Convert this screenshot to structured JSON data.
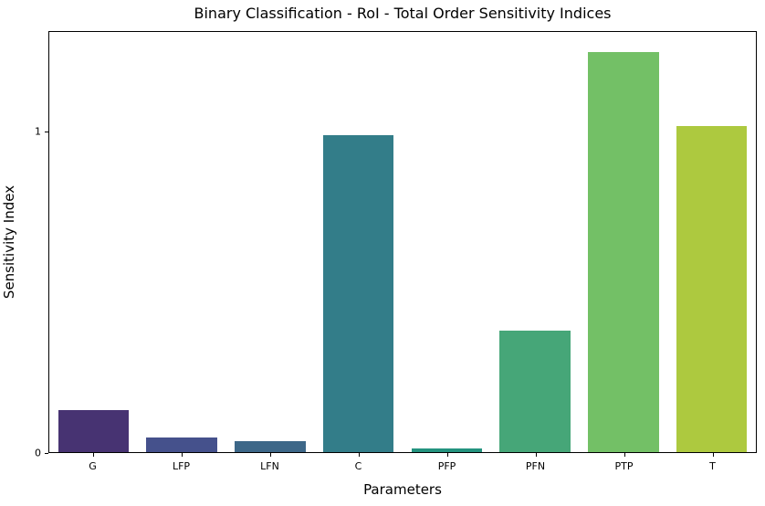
{
  "figure": {
    "background": "#ffffff",
    "spine_color": "#000000",
    "text_color": "#000000"
  },
  "chart_data": {
    "type": "bar",
    "title": "Binary Classification - RoI - Total Order Sensitivity Indices",
    "xlabel": "Parameters",
    "ylabel": "Sensitivity Index",
    "categories": [
      "G",
      "LFP",
      "LFN",
      "C",
      "PFP",
      "PFN",
      "PTP",
      "T"
    ],
    "values": [
      0.13,
      0.045,
      0.034,
      0.99,
      0.011,
      0.38,
      1.25,
      1.02
    ],
    "bar_colors": [
      "#473372",
      "#45518c",
      "#3d6788",
      "#337d89",
      "#24937f",
      "#46a678",
      "#73c066",
      "#adc93f"
    ],
    "ylim": [
      0,
      1.3125
    ],
    "yticks": [
      0,
      1
    ],
    "bar_width_fraction": 0.8,
    "grid": false,
    "legend": null
  }
}
